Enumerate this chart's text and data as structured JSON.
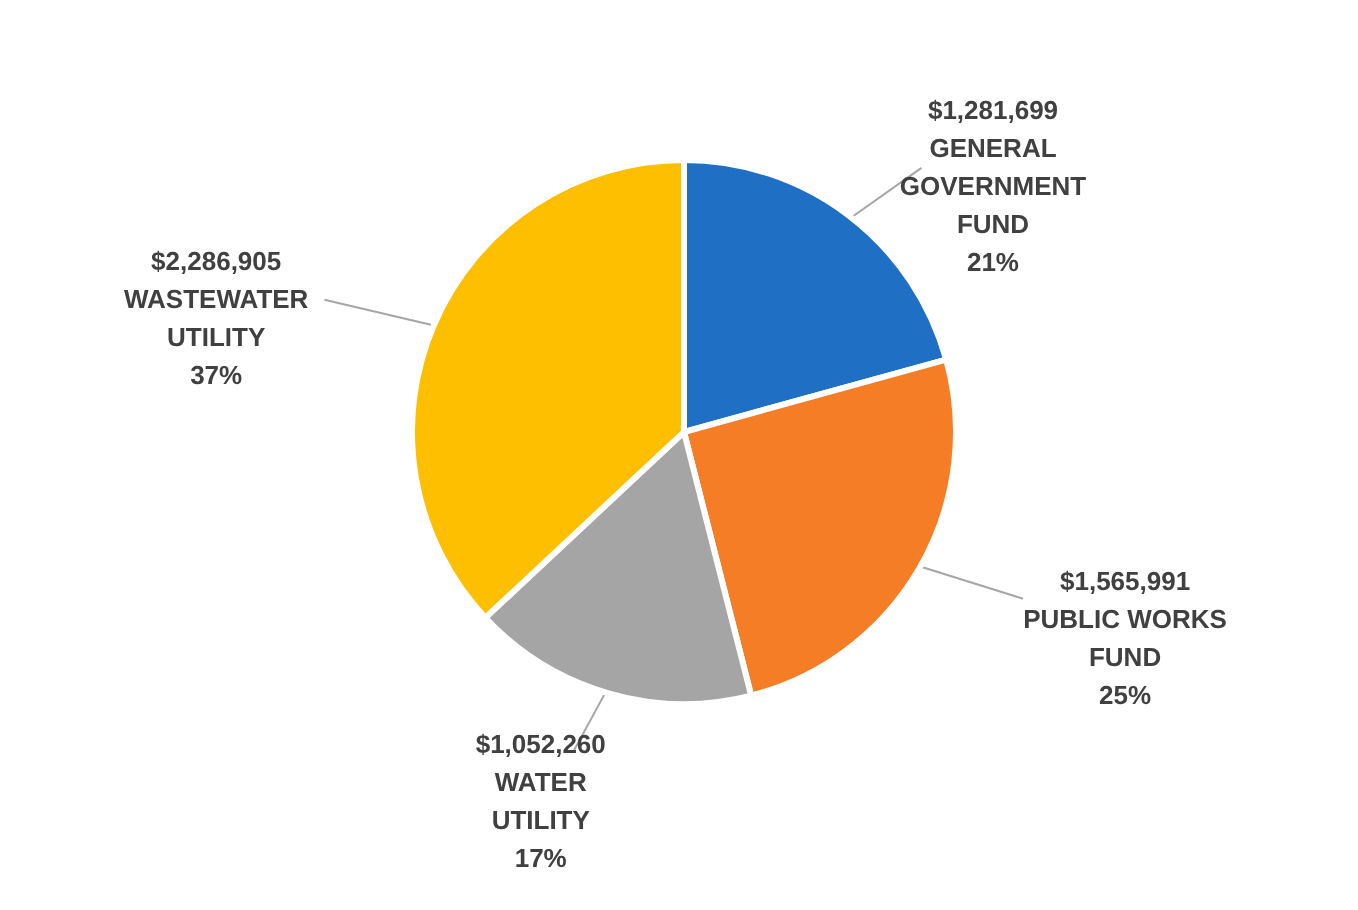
{
  "chart_data": {
    "type": "pie",
    "categories": [
      "GENERAL GOVERNMENT FUND",
      "PUBLIC WORKS FUND",
      "WATER UTILITY",
      "WASTEWATER UTILITY"
    ],
    "values": [
      1281699,
      1565991,
      1052260,
      2286905
    ],
    "value_labels": [
      "$1,281,699",
      "$1,565,991",
      "$1,052,260",
      "$2,286,905"
    ],
    "annotations": [
      "21%",
      "25%",
      "17%",
      "37%"
    ],
    "colors": [
      "#1f6fc5",
      "#f47d26",
      "#a5a5a5",
      "#fdbf00"
    ]
  }
}
